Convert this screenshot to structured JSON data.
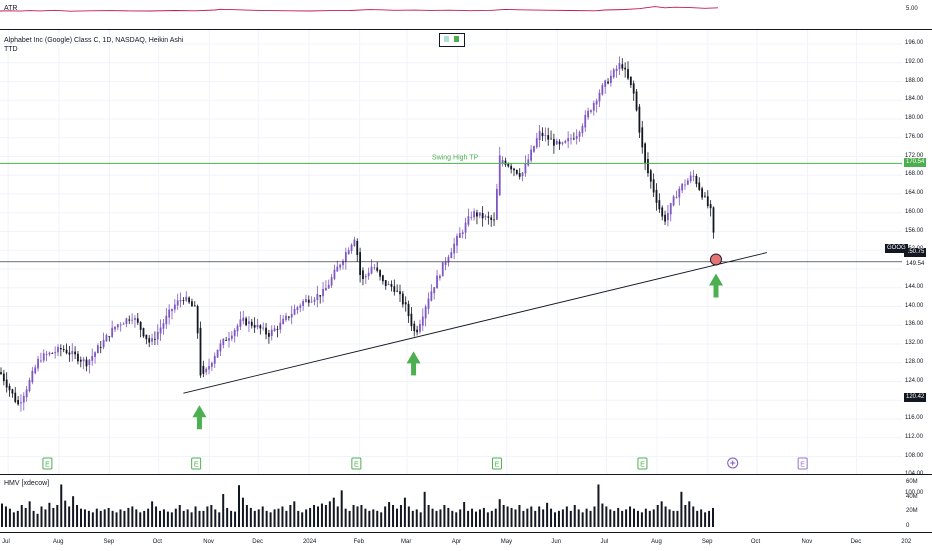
{
  "atr_pane": {
    "label": "ATR",
    "value_label": "5.00"
  },
  "main_pane": {
    "title": "Alphabet Inc (Google) Class C, 1D, NASDAQ, Heikin Ashi",
    "subtitle": "TTD",
    "swing_label": "Swing High TP",
    "symbol_badge": "GOOG",
    "badges": {
      "swing_high": "170.54",
      "current_high": "150.75",
      "current_low": "149.54",
      "support": "120.42"
    },
    "price_axis": [
      "196.00",
      "192.00",
      "188.00",
      "184.00",
      "180.00",
      "176.00",
      "172.00",
      "168.00",
      "164.00",
      "160.00",
      "156.00",
      "152.00",
      "148.00",
      "144.00",
      "140.00",
      "136.00",
      "132.00",
      "128.00",
      "124.00",
      "120.00",
      "116.00",
      "112.00",
      "108.00",
      "104.00",
      "100.00"
    ],
    "earnings_markers": [
      "E",
      "E",
      "E",
      "E",
      "E",
      "E"
    ]
  },
  "volume_pane": {
    "label": "HMV [xdecow]",
    "axis": [
      "60M",
      "40M",
      "20M",
      "0"
    ]
  },
  "time_axis": [
    "Jul",
    "Aug",
    "Sep",
    "Oct",
    "Nov",
    "Dec",
    "2024",
    "Feb",
    "Mar",
    "Apr",
    "May",
    "Jun",
    "Jul",
    "Aug",
    "Sep",
    "Oct",
    "Nov",
    "Dec",
    "202"
  ],
  "colors": {
    "up_candle": "#7e57c2",
    "down_candle": "#131722",
    "swing_line": "#4caf50",
    "trend_line": "#131722",
    "arrow": "#4caf50",
    "atr_line": "#c2185b",
    "volume": "#131722",
    "earnings": "#4caf50",
    "circle_fill": "#e57373"
  },
  "chart_data": {
    "type": "candlestick",
    "title": "Alphabet Inc (Google) Class C, 1D, NASDAQ, Heikin Ashi",
    "ylim": [
      100,
      196
    ],
    "y_scale": "linear",
    "grid": true,
    "key_prices": {
      "swing_high_tp": 170.54,
      "last_high": 150.75,
      "last_low": 149.54,
      "support_low": 120.42
    },
    "close_path": [
      [
        "2023-06-26",
        126
      ],
      [
        "2023-07-07",
        119
      ],
      [
        "2023-07-14",
        124
      ],
      [
        "2023-07-20",
        129
      ],
      [
        "2023-08-03",
        131
      ],
      [
        "2023-08-18",
        128
      ],
      [
        "2023-09-05",
        136
      ],
      [
        "2023-09-15",
        138
      ],
      [
        "2023-09-26",
        132
      ],
      [
        "2023-10-10",
        140
      ],
      [
        "2023-10-16",
        142
      ],
      [
        "2023-10-24",
        139
      ],
      [
        "2023-10-27",
        124
      ],
      [
        "2023-11-06",
        131
      ],
      [
        "2023-11-21",
        137
      ],
      [
        "2023-11-29",
        136
      ],
      [
        "2023-12-07",
        134
      ],
      [
        "2023-12-14",
        136
      ],
      [
        "2023-12-28",
        141
      ],
      [
        "2024-01-10",
        143
      ],
      [
        "2024-01-18",
        148
      ],
      [
        "2024-01-29",
        155
      ],
      [
        "2024-02-02",
        145
      ],
      [
        "2024-02-09",
        149
      ],
      [
        "2024-02-15",
        145
      ],
      [
        "2024-02-22",
        144
      ],
      [
        "2024-02-29",
        140
      ],
      [
        "2024-03-06",
        134
      ],
      [
        "2024-03-14",
        142
      ],
      [
        "2024-03-26",
        151
      ],
      [
        "2024-04-10",
        160
      ],
      [
        "2024-04-24",
        158
      ],
      [
        "2024-04-26",
        172
      ],
      [
        "2024-05-10",
        168
      ],
      [
        "2024-05-21",
        177
      ],
      [
        "2024-06-03",
        174
      ],
      [
        "2024-06-13",
        177
      ],
      [
        "2024-06-27",
        186
      ],
      [
        "2024-07-10",
        192
      ],
      [
        "2024-07-18",
        185
      ],
      [
        "2024-07-24",
        171
      ],
      [
        "2024-08-05",
        158
      ],
      [
        "2024-08-14",
        165
      ],
      [
        "2024-08-23",
        168
      ],
      [
        "2024-09-03",
        160
      ],
      [
        "2024-09-06",
        150
      ]
    ],
    "trendline": [
      [
        "2023-10-26",
        121.5
      ],
      [
        "2024-03-05",
        133
      ],
      [
        "2024-09-06",
        149.6
      ],
      [
        "2024-09-20",
        151.5
      ]
    ],
    "up_arrows_at": [
      [
        "2023-10-26",
        121.5
      ],
      [
        "2024-03-05",
        133
      ],
      [
        "2024-09-06",
        149.6
      ]
    ],
    "earnings_dates": [
      "2023-07-25",
      "2023-10-24",
      "2024-01-30",
      "2024-04-25",
      "2024-07-23",
      "2024-10-29"
    ],
    "atr": {
      "marked_value": 5.0,
      "path": [
        [
          0,
          7
        ],
        [
          10,
          6.8
        ],
        [
          20,
          7.1
        ],
        [
          30,
          6.6
        ],
        [
          40,
          6.9
        ],
        [
          55,
          6.3
        ],
        [
          70,
          7.2
        ],
        [
          90,
          6.8
        ],
        [
          110,
          6.6
        ],
        [
          130,
          6.9
        ],
        [
          150,
          7.0
        ],
        [
          175,
          6.5
        ],
        [
          195,
          6.8
        ],
        [
          215,
          6.0
        ],
        [
          220,
          5.3
        ],
        [
          235,
          5.7
        ],
        [
          250,
          6.2
        ],
        [
          270,
          6.6
        ],
        [
          290,
          6.8
        ],
        [
          310,
          7.0
        ],
        [
          330,
          6.6
        ],
        [
          350,
          6.5
        ],
        [
          370,
          5.6
        ],
        [
          380,
          5.8
        ],
        [
          395,
          6.3
        ],
        [
          415,
          6.1
        ],
        [
          430,
          6.4
        ],
        [
          450,
          6.2
        ],
        [
          470,
          6.7
        ],
        [
          490,
          6.4
        ],
        [
          505,
          5.4
        ],
        [
          520,
          5.8
        ],
        [
          545,
          6.2
        ],
        [
          570,
          6.5
        ],
        [
          595,
          6.8
        ],
        [
          605,
          6.0
        ],
        [
          625,
          5.5
        ],
        [
          640,
          4.6
        ],
        [
          655,
          2.6
        ],
        [
          665,
          3.8
        ],
        [
          675,
          3.2
        ],
        [
          690,
          3.6
        ],
        [
          705,
          4.3
        ],
        [
          718,
          3.8
        ]
      ]
    },
    "volume_m": [
      32,
      28,
      25,
      20,
      22,
      30,
      26,
      35,
      22,
      18,
      28,
      24,
      33,
      26,
      30,
      58,
      36,
      28,
      42,
      30,
      25,
      24,
      22,
      20,
      25,
      22,
      24,
      26,
      22,
      20,
      24,
      22,
      26,
      28,
      24,
      20,
      22,
      25,
      35,
      28,
      22,
      24,
      21,
      20,
      25,
      30,
      22,
      24,
      20,
      28,
      22,
      22,
      28,
      30,
      24,
      20,
      45,
      26,
      22,
      21,
      57,
      40,
      30,
      26,
      22,
      24,
      28,
      22,
      20,
      24,
      25,
      28,
      22,
      30,
      35,
      22,
      20,
      24,
      26,
      30,
      28,
      32,
      30,
      35,
      40,
      28,
      50,
      25,
      22,
      30,
      28,
      30,
      25,
      22,
      24,
      22,
      20,
      28,
      34,
      30,
      25,
      30,
      40,
      28,
      22,
      24,
      20,
      48,
      30,
      25,
      22,
      24,
      30,
      26,
      22,
      20,
      24,
      34,
      22,
      25,
      21,
      24,
      26,
      20,
      22,
      25,
      38,
      30,
      28,
      26,
      24,
      30,
      22,
      25,
      28,
      22,
      28,
      24,
      33,
      25,
      20,
      22,
      24,
      28,
      22,
      30,
      24,
      20,
      25,
      22,
      28,
      58,
      32,
      28,
      24,
      22,
      26,
      22,
      24,
      28,
      25,
      22,
      20,
      25,
      22,
      24,
      30,
      35,
      28,
      24,
      22,
      22,
      48,
      30,
      35,
      28,
      22,
      24,
      20,
      22,
      26,
      22,
      24,
      28
    ]
  }
}
